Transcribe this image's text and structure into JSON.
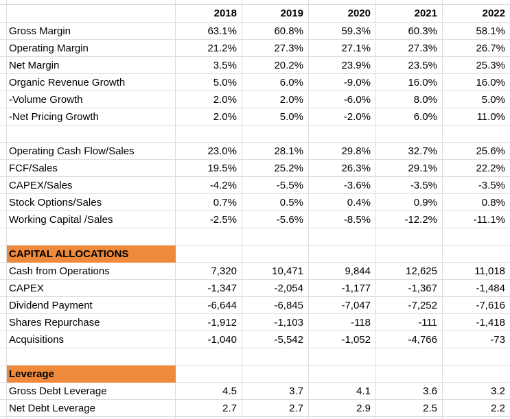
{
  "colors": {
    "section_fill": "#ef8a3c",
    "gridline": "#dcdcdc",
    "text": "#000000",
    "background": "#ffffff"
  },
  "table": {
    "header": {
      "labels": [
        "2018",
        "2019",
        "2020",
        "2021",
        "2022"
      ]
    },
    "rows": [
      {
        "type": "data",
        "label": "Gross Margin",
        "values": [
          "63.1%",
          "60.8%",
          "59.3%",
          "60.3%",
          "58.1%"
        ]
      },
      {
        "type": "data",
        "label": "Operating Margin",
        "values": [
          "21.2%",
          "27.3%",
          "27.1%",
          "27.3%",
          "26.7%"
        ]
      },
      {
        "type": "data",
        "label": "Net Margin",
        "values": [
          "3.5%",
          "20.2%",
          "23.9%",
          "23.5%",
          "25.3%"
        ]
      },
      {
        "type": "data",
        "label": "Organic Revenue Growth",
        "values": [
          "5.0%",
          "6.0%",
          "-9.0%",
          "16.0%",
          "16.0%"
        ]
      },
      {
        "type": "data",
        "label": "-Volume Growth",
        "values": [
          "2.0%",
          "2.0%",
          "-6.0%",
          "8.0%",
          "5.0%"
        ]
      },
      {
        "type": "data",
        "label": "-Net Pricing Growth",
        "values": [
          "2.0%",
          "5.0%",
          "-2.0%",
          "6.0%",
          "11.0%"
        ]
      },
      {
        "type": "blank",
        "label": "",
        "values": [
          "",
          "",
          "",
          "",
          ""
        ]
      },
      {
        "type": "data",
        "label": "Operating Cash Flow/Sales",
        "values": [
          "23.0%",
          "28.1%",
          "29.8%",
          "32.7%",
          "25.6%"
        ]
      },
      {
        "type": "data",
        "label": "FCF/Sales",
        "values": [
          "19.5%",
          "25.2%",
          "26.3%",
          "29.1%",
          "22.2%"
        ]
      },
      {
        "type": "data",
        "label": "CAPEX/Sales",
        "values": [
          "-4.2%",
          "-5.5%",
          "-3.6%",
          "-3.5%",
          "-3.5%"
        ]
      },
      {
        "type": "data",
        "label": "Stock Options/Sales",
        "values": [
          "0.7%",
          "0.5%",
          "0.4%",
          "0.9%",
          "0.8%"
        ]
      },
      {
        "type": "data",
        "label": "Working Capital /Sales",
        "values": [
          "-2.5%",
          "-5.6%",
          "-8.5%",
          "-12.2%",
          "-11.1%"
        ]
      },
      {
        "type": "blank",
        "label": "",
        "values": [
          "",
          "",
          "",
          "",
          ""
        ]
      },
      {
        "type": "section",
        "label": "CAPITAL ALLOCATIONS",
        "values": [
          "",
          "",
          "",
          "",
          ""
        ]
      },
      {
        "type": "data",
        "label": "Cash from Operations",
        "values": [
          "7,320",
          "10,471",
          "9,844",
          "12,625",
          "11,018"
        ]
      },
      {
        "type": "data",
        "label": "CAPEX",
        "values": [
          "-1,347",
          "-2,054",
          "-1,177",
          "-1,367",
          "-1,484"
        ]
      },
      {
        "type": "data",
        "label": "Dividend Payment",
        "values": [
          "-6,644",
          "-6,845",
          "-7,047",
          "-7,252",
          "-7,616"
        ]
      },
      {
        "type": "data",
        "label": "Shares Repurchase",
        "values": [
          "-1,912",
          "-1,103",
          "-118",
          "-111",
          "-1,418"
        ]
      },
      {
        "type": "data",
        "label": "Acquisitions",
        "values": [
          "-1,040",
          "-5,542",
          "-1,052",
          "-4,766",
          "-73"
        ]
      },
      {
        "type": "blank",
        "label": "",
        "values": [
          "",
          "",
          "",
          "",
          ""
        ]
      },
      {
        "type": "section",
        "label": "Leverage",
        "values": [
          "",
          "",
          "",
          "",
          ""
        ]
      },
      {
        "type": "data",
        "label": "Gross Debt Leverage",
        "values": [
          "4.5",
          "3.7",
          "4.1",
          "3.6",
          "3.2"
        ]
      },
      {
        "type": "data",
        "label": "Net Debt Leverage",
        "values": [
          "2.7",
          "2.7",
          "2.9",
          "2.5",
          "2.2"
        ]
      }
    ]
  }
}
